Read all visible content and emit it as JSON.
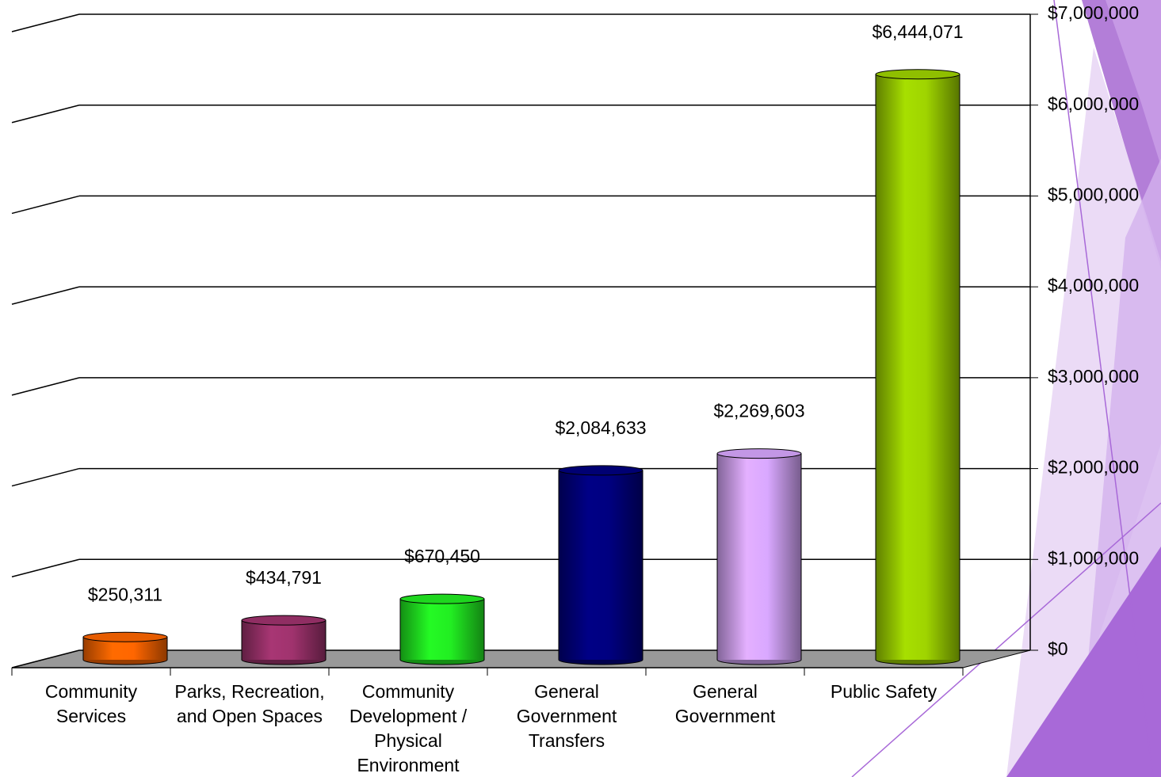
{
  "chart_data": {
    "type": "bar",
    "categories": [
      "Community Services",
      "Parks, Recreation, and Open Spaces",
      "Community Development / Physical Environment",
      "General Government Transfers",
      "General Government",
      "Public Safety"
    ],
    "values": [
      250311,
      434791,
      670450,
      2084633,
      2269603,
      6444071
    ],
    "value_labels": [
      "$250,311",
      "$434,791",
      "$670,450",
      "$2,084,633",
      "$2,269,603",
      "$6,444,071"
    ],
    "colors": [
      "#ff6600",
      "#a0336e",
      "#22ee22",
      "#000080",
      "#d9a8ff",
      "#9fd400"
    ],
    "ylim": [
      0,
      7000000
    ],
    "yticks": [
      {
        "value": 0,
        "label": "$0"
      },
      {
        "value": 1000000,
        "label": "$1,000,000"
      },
      {
        "value": 2000000,
        "label": "$2,000,000"
      },
      {
        "value": 3000000,
        "label": "$3,000,000"
      },
      {
        "value": 4000000,
        "label": "$4,000,000"
      },
      {
        "value": 5000000,
        "label": "$5,000,000"
      },
      {
        "value": 6000000,
        "label": "$6,000,000"
      },
      {
        "value": 7000000,
        "label": "$7,000,000"
      }
    ],
    "grid": true
  }
}
